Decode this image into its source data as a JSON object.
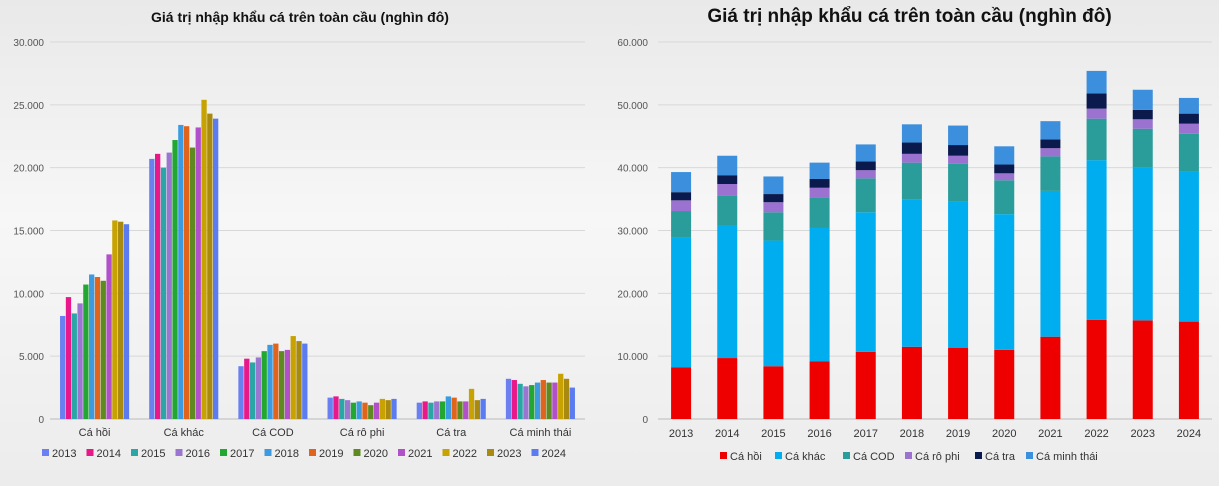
{
  "charts": {
    "left": {
      "title": "Giá trị nhập khẩu cá trên toàn cầu (nghìn đô)"
    },
    "right": {
      "title": "Giá trị nhập khẩu cá trên toàn cầu (nghìn đô)"
    }
  },
  "chart_data": [
    {
      "type": "bar",
      "title": "Giá trị nhập khẩu cá trên toàn cầu (nghìn đô)",
      "categories": [
        "Cá hồi",
        "Cá khác",
        "Cá COD",
        "Cá rô phi",
        "Cá tra",
        "Cá minh thái"
      ],
      "ylim": [
        0,
        30000
      ],
      "yticks": [
        "0",
        "5.000",
        "10.000",
        "15.000",
        "20.000",
        "25.000",
        "30.000"
      ],
      "legend_position": "bottom",
      "series": [
        {
          "name": "2013",
          "color": "#6a7ff0",
          "values": [
            8200,
            20700,
            4200,
            1700,
            1300,
            3200
          ]
        },
        {
          "name": "2014",
          "color": "#e8178a",
          "values": [
            9700,
            21100,
            4800,
            1800,
            1400,
            3100
          ]
        },
        {
          "name": "2015",
          "color": "#2aa6a6",
          "values": [
            8400,
            20000,
            4500,
            1600,
            1300,
            2800
          ]
        },
        {
          "name": "2016",
          "color": "#9a76d0",
          "values": [
            9200,
            21200,
            4900,
            1500,
            1400,
            2600
          ]
        },
        {
          "name": "2017",
          "color": "#22a832",
          "values": [
            10700,
            22200,
            5400,
            1300,
            1400,
            2700
          ]
        },
        {
          "name": "2018",
          "color": "#3c9be0",
          "values": [
            11500,
            23400,
            5900,
            1400,
            1800,
            2900
          ]
        },
        {
          "name": "2019",
          "color": "#e0641c",
          "values": [
            11300,
            23300,
            6000,
            1300,
            1700,
            3100
          ]
        },
        {
          "name": "2020",
          "color": "#5e8a1f",
          "values": [
            11000,
            21600,
            5400,
            1100,
            1400,
            2900
          ]
        },
        {
          "name": "2021",
          "color": "#b150c8",
          "values": [
            13100,
            23200,
            5500,
            1300,
            1400,
            2900
          ]
        },
        {
          "name": "2022",
          "color": "#c8a200",
          "values": [
            15800,
            25400,
            6600,
            1600,
            2400,
            3600
          ]
        },
        {
          "name": "2023",
          "color": "#a88a10",
          "values": [
            15700,
            24300,
            6200,
            1500,
            1500,
            3200
          ]
        },
        {
          "name": "2024",
          "color": "#5b7cf0",
          "values": [
            15500,
            23900,
            6000,
            1600,
            1600,
            2500
          ]
        }
      ]
    },
    {
      "type": "bar",
      "stacked": true,
      "title": "Giá trị nhập khẩu cá trên toàn cầu (nghìn đô)",
      "categories": [
        "2013",
        "2014",
        "2015",
        "2016",
        "2017",
        "2018",
        "2019",
        "2020",
        "2021",
        "2022",
        "2023",
        "2024"
      ],
      "ylim": [
        0,
        60000
      ],
      "yticks": [
        "0",
        "10.000",
        "20.000",
        "30.000",
        "40.000",
        "50.000",
        "60.000"
      ],
      "legend_position": "bottom",
      "series": [
        {
          "name": "Cá hồi",
          "color": "#ee0000",
          "values": [
            8200,
            9700,
            8400,
            9200,
            10700,
            11500,
            11300,
            11000,
            13100,
            15800,
            15700,
            15500
          ]
        },
        {
          "name": "Cá khác",
          "color": "#00aeef",
          "values": [
            20700,
            21100,
            20000,
            21200,
            22200,
            23400,
            23300,
            21600,
            23200,
            25400,
            24300,
            23900
          ]
        },
        {
          "name": "Cá COD",
          "color": "#2a9d9a",
          "values": [
            4200,
            4800,
            4500,
            4900,
            5400,
            5900,
            6000,
            5400,
            5500,
            6600,
            6200,
            6000
          ]
        },
        {
          "name": "Cá rô phi",
          "color": "#9b72cf",
          "values": [
            1700,
            1800,
            1600,
            1500,
            1300,
            1400,
            1300,
            1100,
            1300,
            1600,
            1500,
            1600
          ]
        },
        {
          "name": "Cá tra",
          "color": "#0b1a4c",
          "values": [
            1300,
            1400,
            1300,
            1400,
            1400,
            1800,
            1700,
            1400,
            1400,
            2400,
            1500,
            1600
          ]
        },
        {
          "name": "Cá minh thái",
          "color": "#3c8fdc",
          "values": [
            3200,
            3100,
            2800,
            2600,
            2700,
            2900,
            3100,
            2900,
            2900,
            3600,
            3200,
            2500
          ]
        }
      ]
    }
  ]
}
